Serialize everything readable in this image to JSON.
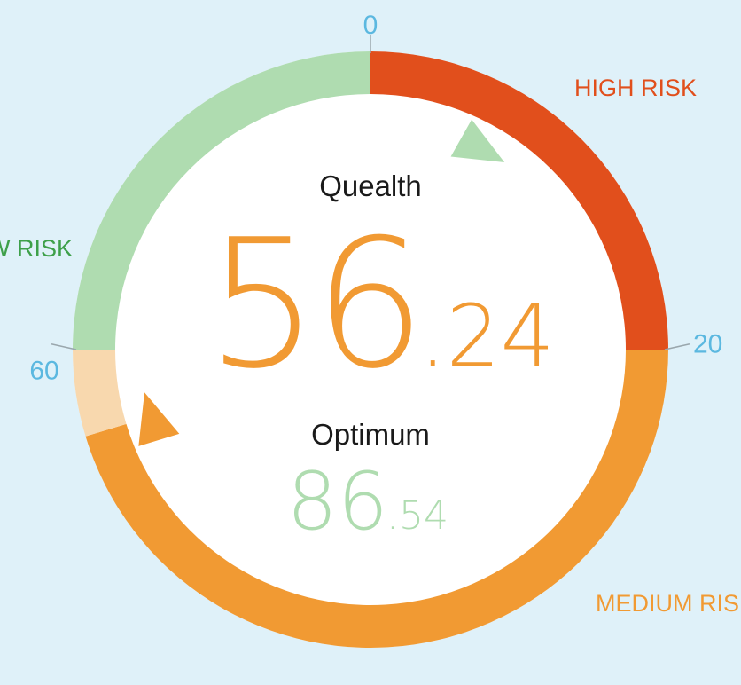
{
  "chart_data": {
    "type": "gauge",
    "range": [
      0,
      80
    ],
    "zones": [
      {
        "label": "HIGH RISK",
        "from": 0,
        "to": 20,
        "color": "#e14f1c"
      },
      {
        "label": "MEDIUM RISK",
        "from": 20,
        "to": 56.24,
        "color": "#f19a33"
      },
      {
        "label": "MEDIUM RISK",
        "from": 56.24,
        "to": 60,
        "color": "#f8d8ae"
      },
      {
        "label": "LOW RISK",
        "from": 60,
        "to": 80,
        "color": "#afdcb0"
      }
    ],
    "ticks": [
      {
        "value": 0,
        "label": "0"
      },
      {
        "value": 20,
        "label": "20"
      },
      {
        "value": 60,
        "label": "60"
      }
    ],
    "zone_labels": {
      "high": "HIGH RISK",
      "medium": "MEDIUM RISK",
      "low": "LOW RISK"
    },
    "score": {
      "title": "Quealth",
      "value": 56.24,
      "int": "56",
      "dec": ".24",
      "color": "#f19a33"
    },
    "optimum": {
      "title": "Optimum",
      "value": 86.54,
      "int": "86",
      "dec": ".54",
      "color": "#afdcb0"
    }
  },
  "colors": {
    "background": "#dff1f9",
    "tick": "#5bb8e0",
    "high": "#e14f1c",
    "medium": "#f19a33",
    "low": "#3ea04a"
  }
}
